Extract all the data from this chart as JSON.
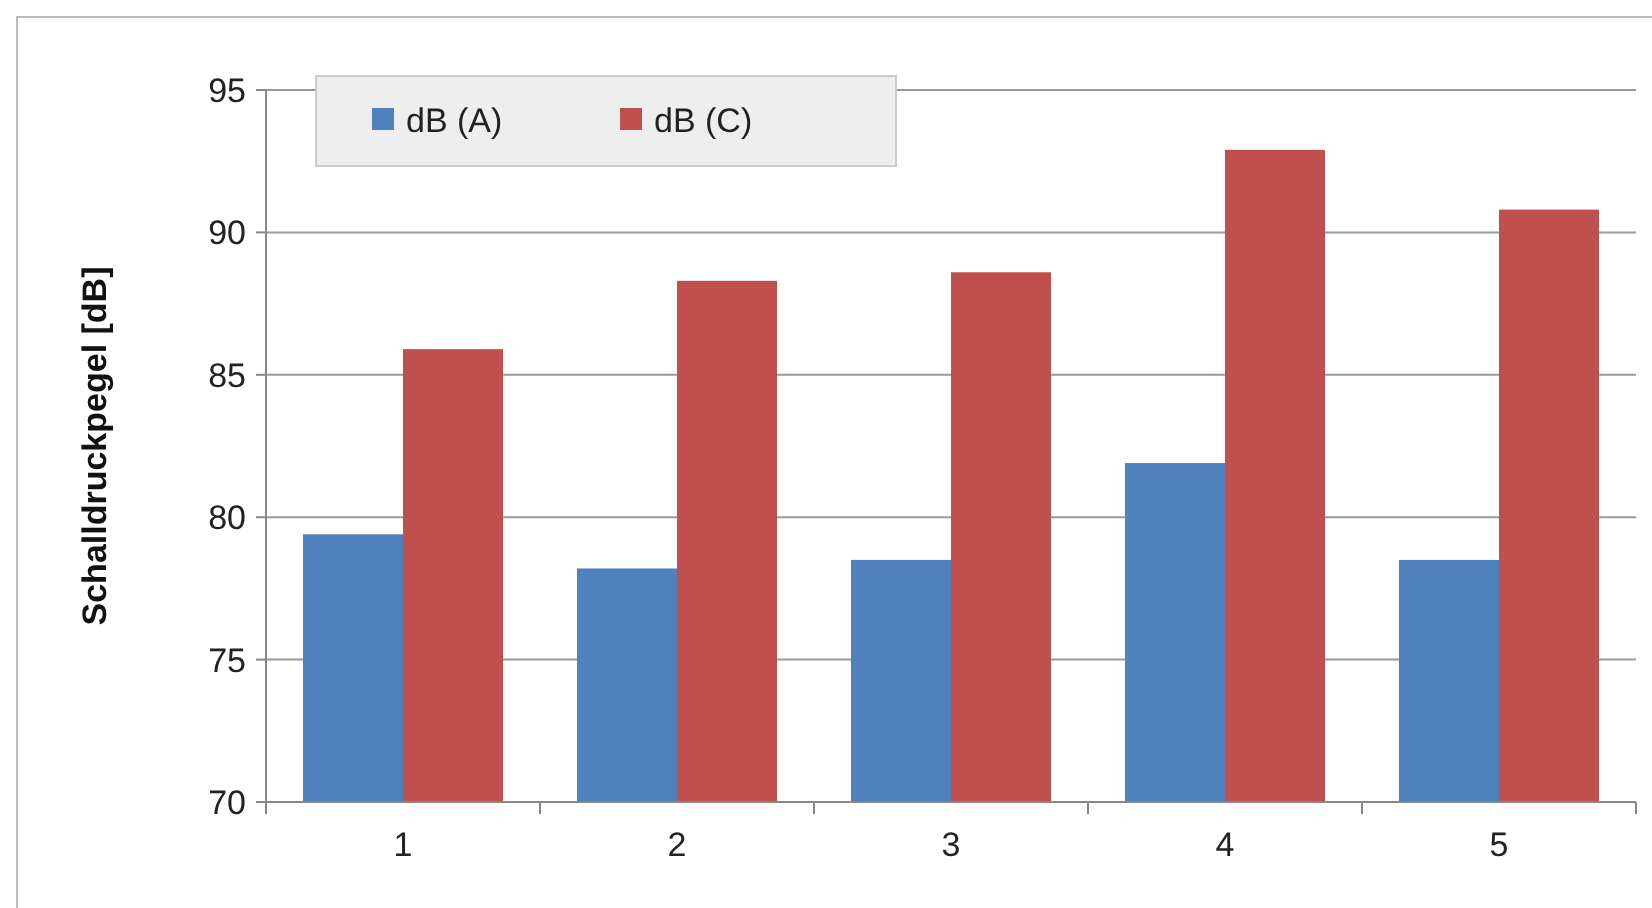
{
  "chart_data": {
    "type": "bar",
    "ylabel": "Schalldruckpegel [dB]",
    "categories": [
      "1",
      "2",
      "3",
      "4",
      "5"
    ],
    "series": [
      {
        "name": "dB (A)",
        "color": "#4f81bd",
        "values": [
          79.4,
          78.2,
          78.5,
          81.9,
          78.5
        ]
      },
      {
        "name": "dB (C)",
        "color": "#c0504d",
        "values": [
          85.9,
          88.3,
          88.6,
          92.9,
          90.8
        ]
      }
    ],
    "ylim": [
      70,
      95
    ],
    "yticks": [
      70,
      75,
      80,
      85,
      90,
      95
    ],
    "grid": "y",
    "legend": "top left"
  }
}
